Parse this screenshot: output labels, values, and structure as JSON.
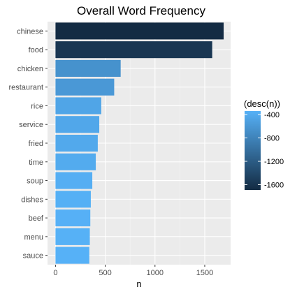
{
  "chart_data": {
    "type": "bar",
    "orientation": "horizontal",
    "title": "Overall Word Frequency",
    "xlabel": "n",
    "ylabel": "",
    "xlim": [
      -80,
      1760
    ],
    "x_ticks": [
      0,
      500,
      1000,
      1500
    ],
    "grid": true,
    "categories": [
      "chinese",
      "food",
      "chicken",
      "restaurant",
      "rice",
      "service",
      "fried",
      "time",
      "soup",
      "dishes",
      "beef",
      "menu",
      "sauce"
    ],
    "values": [
      1690,
      1575,
      655,
      590,
      460,
      440,
      425,
      405,
      370,
      355,
      350,
      345,
      340
    ],
    "fill_variable": "desc(n)",
    "legend": {
      "title": "(desc(n))",
      "position": "right",
      "ticks": [
        -400,
        -800,
        -1200,
        -1600
      ],
      "range": [
        -1690,
        -340
      ]
    },
    "colors": {
      "low": "#132B43",
      "high": "#56B1F7",
      "panel": "#EBEBEB",
      "grid_major": "#FFFFFF",
      "grid_minor": "#F5F5F5",
      "axis_text": "#4D4D4D"
    }
  }
}
